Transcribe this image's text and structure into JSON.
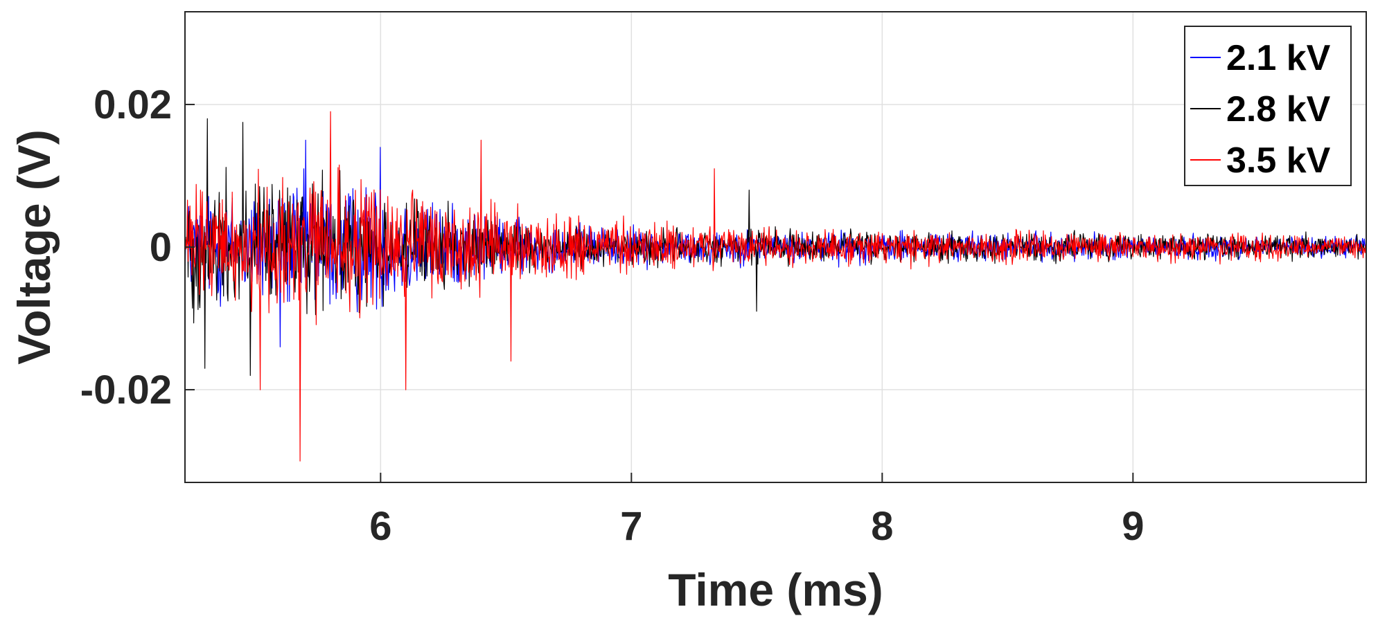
{
  "chart_data": {
    "type": "line",
    "title": "",
    "xlabel": "Time (ms)",
    "ylabel": "Voltage (V)",
    "xlim": [
      5.22,
      9.93
    ],
    "ylim": [
      -0.033,
      0.033
    ],
    "xticks": [
      6,
      7,
      8,
      9
    ],
    "xtick_labels": [
      "6",
      "7",
      "8",
      "9"
    ],
    "yticks": [
      -0.02,
      0,
      0.02
    ],
    "ytick_labels": [
      "-0.02",
      "0",
      "0.02"
    ],
    "grid": true,
    "legend_position": "top-right",
    "series": [
      {
        "name": "2.1 kV",
        "color": "#0000ff",
        "envelope": {
          "x": [
            5.22,
            5.5,
            5.8,
            6.0,
            6.3,
            6.6,
            7.0,
            7.5,
            8.0,
            8.5,
            9.0,
            9.5,
            9.93
          ],
          "amp": [
            0.009,
            0.011,
            0.012,
            0.011,
            0.007,
            0.0045,
            0.0035,
            0.003,
            0.0028,
            0.0025,
            0.0023,
            0.002,
            0.0018
          ]
        },
        "extremes": [
          {
            "x": 5.6,
            "y": -0.014
          },
          {
            "x": 5.7,
            "y": 0.015
          },
          {
            "x": 6.0,
            "y": 0.014
          }
        ]
      },
      {
        "name": "2.8 kV",
        "color": "#000000",
        "envelope": {
          "x": [
            5.22,
            5.5,
            5.8,
            6.0,
            6.3,
            6.6,
            7.0,
            7.5,
            8.0,
            8.5,
            9.0,
            9.5,
            9.93
          ],
          "amp": [
            0.012,
            0.013,
            0.011,
            0.009,
            0.006,
            0.004,
            0.003,
            0.0035,
            0.0028,
            0.0025,
            0.0023,
            0.0022,
            0.002
          ]
        },
        "extremes": [
          {
            "x": 5.3,
            "y": -0.017
          },
          {
            "x": 5.31,
            "y": 0.018
          },
          {
            "x": 5.45,
            "y": 0.0175
          },
          {
            "x": 5.48,
            "y": -0.018
          },
          {
            "x": 7.47,
            "y": 0.008
          },
          {
            "x": 7.5,
            "y": -0.009
          }
        ]
      },
      {
        "name": "3.5 kV",
        "color": "#ff0000",
        "envelope": {
          "x": [
            5.22,
            5.5,
            5.8,
            6.0,
            6.3,
            6.6,
            7.0,
            7.5,
            8.0,
            8.5,
            9.0,
            9.5,
            9.93
          ],
          "amp": [
            0.01,
            0.012,
            0.013,
            0.012,
            0.009,
            0.006,
            0.0045,
            0.0035,
            0.003,
            0.0028,
            0.0025,
            0.0023,
            0.002
          ]
        },
        "extremes": [
          {
            "x": 5.68,
            "y": -0.03
          },
          {
            "x": 5.8,
            "y": 0.019
          },
          {
            "x": 5.52,
            "y": -0.02
          },
          {
            "x": 6.1,
            "y": -0.02
          },
          {
            "x": 6.4,
            "y": 0.015
          },
          {
            "x": 6.52,
            "y": -0.016
          },
          {
            "x": 7.33,
            "y": 0.011
          }
        ]
      }
    ]
  }
}
